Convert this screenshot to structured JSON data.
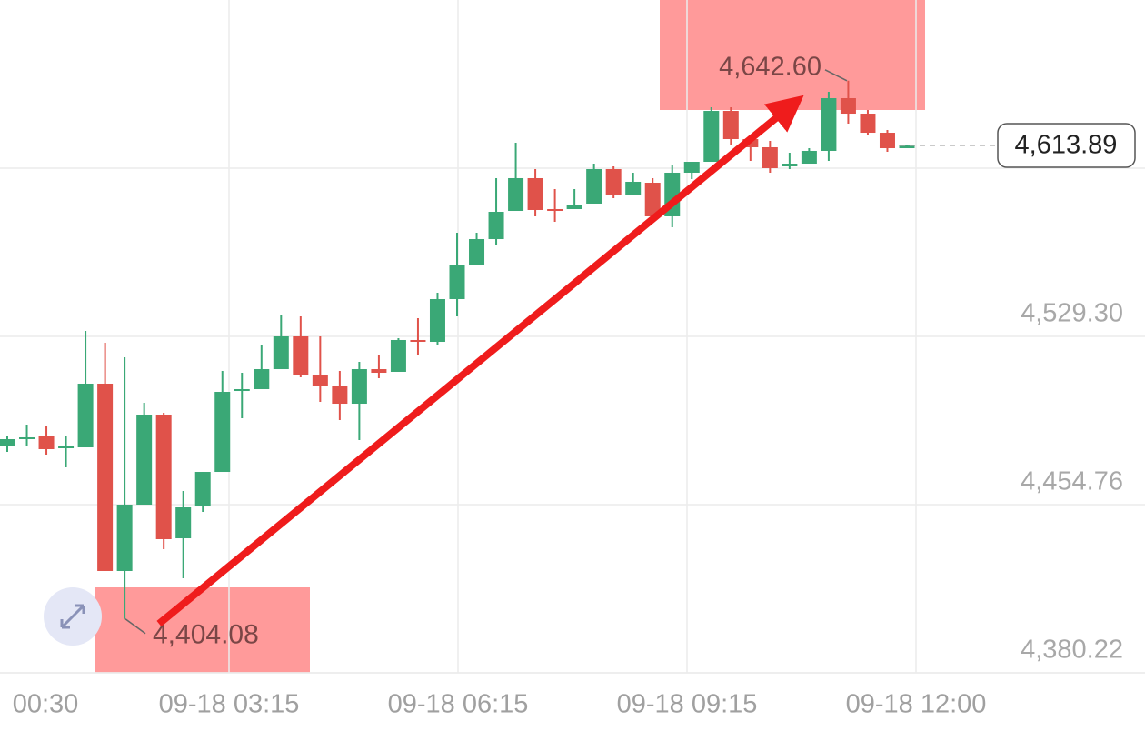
{
  "chart_data": {
    "type": "candlestick",
    "colors": {
      "up": "#3aa876",
      "down": "#e0524a"
    },
    "ylim": [
      4380.22,
      4678.38
    ],
    "yticks": [
      {
        "value": 4380.22,
        "label": "4,380.22"
      },
      {
        "value": 4454.76,
        "label": "4,454.76"
      },
      {
        "value": 4529.3,
        "label": "4,529.30"
      }
    ],
    "x_labels": [
      "00:30",
      "09-18 03:15",
      "09-18 06:15",
      "09-18 09:15",
      "09-18 12:00"
    ],
    "open": [
      4480.95,
      4483.77,
      4484.98,
      4479.74,
      4480.14,
      4508.35,
      4425.35,
      4454.76,
      4494.65,
      4439.85,
      4453.95,
      4469.26,
      4505.12,
      4505.93,
      4514.79,
      4529.3,
      4512.38,
      4507.14,
      4499.48,
      4514.79,
      4513.59,
      4527.69,
      4526.88,
      4545.82,
      4560.73,
      4572.41,
      4584.9,
      4599.41,
      4585.71,
      4585.71,
      4588.13,
      4603.44,
      4592.16,
      4597.39,
      4582.49,
      4601.83,
      4606.66,
      4629.22,
      4616.73,
      4613.11,
      4604.65,
      4605.85,
      4611.5,
      4634.86,
      4628.01,
      4619.55,
      4612.7
    ],
    "high": [
      4484.98,
      4490.22,
      4489.81,
      4484.98,
      4531.72,
      4526.48,
      4520.03,
      4499.89,
      4495.45,
      4460.8,
      4469.26,
      4513.99,
      4513.18,
      4525.27,
      4538.97,
      4538.16,
      4529.3,
      4513.99,
      4518.02,
      4521.24,
      4528.49,
      4537.36,
      4548.64,
      4575.23,
      4575.23,
      4599.41,
      4615.12,
      4603.44,
      4594.57,
      4594.57,
      4605.85,
      4604.65,
      4601.83,
      4599.41,
      4605.45,
      4606.66,
      4630.84,
      4630.84,
      4617.94,
      4615.93,
      4610.69,
      4612.7,
      4637.69,
      4642.6,
      4629.63,
      4620.76,
      4614.3
    ],
    "low": [
      4478.13,
      4480.95,
      4476.92,
      4471.28,
      4480.14,
      4425.35,
      4404.08,
      4454.76,
      4435.02,
      4422.12,
      4451.54,
      4469.26,
      4493.04,
      4505.93,
      4514.79,
      4511.17,
      4500.29,
      4492.23,
      4483.37,
      4510.77,
      4513.59,
      4521.24,
      4525.67,
      4538.16,
      4560.73,
      4569.59,
      4584.9,
      4582.49,
      4580.07,
      4585.71,
      4588.13,
      4590.54,
      4592.16,
      4581.68,
      4577.65,
      4599.0,
      4606.66,
      4613.91,
      4607.06,
      4601.83,
      4603.44,
      4605.85,
      4607.06,
      4623.58,
      4618.75,
      4611.09,
      4612.7
    ],
    "close": [
      4483.77,
      4484.58,
      4479.34,
      4480.95,
      4508.35,
      4425.35,
      4454.76,
      4494.65,
      4439.45,
      4453.55,
      4469.26,
      4504.72,
      4505.93,
      4514.79,
      4529.3,
      4512.38,
      4507.14,
      4499.48,
      4514.79,
      4513.18,
      4527.69,
      4526.88,
      4545.82,
      4560.73,
      4572.41,
      4584.5,
      4599.41,
      4585.31,
      4584.9,
      4587.72,
      4603.44,
      4592.16,
      4597.8,
      4582.49,
      4601.83,
      4606.66,
      4629.22,
      4616.73,
      4613.11,
      4603.84,
      4605.85,
      4611.5,
      4634.86,
      4628.01,
      4619.55,
      4612.7,
      4613.89
    ],
    "annotations": {
      "high": {
        "value": 4642.6,
        "label": "4,642.60"
      },
      "low": {
        "value": 4404.08,
        "label": "4,404.08"
      },
      "current": {
        "value": 4613.89,
        "label": "4,613.89"
      }
    }
  }
}
